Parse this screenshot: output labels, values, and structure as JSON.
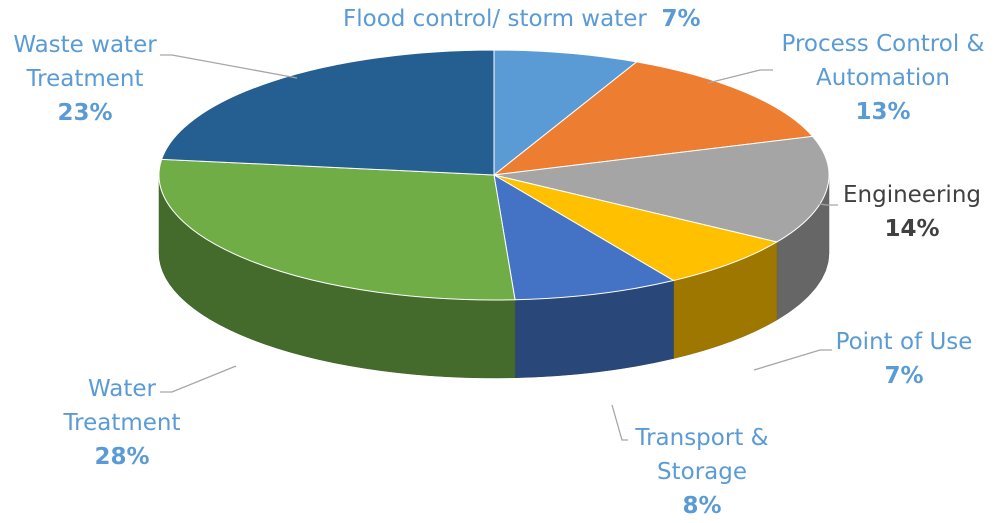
{
  "chart_data": {
    "type": "pie",
    "style": "3d",
    "slices": [
      {
        "label": "Flood control/ storm water",
        "value": 7,
        "pct": "7%",
        "color": "#5b9bd5",
        "label_color": "#5b9bd5"
      },
      {
        "label": "Process Control & Automation",
        "value": 13,
        "pct": "13%",
        "color": "#ed7d31",
        "label_color": "#5b9bd5"
      },
      {
        "label": "Engineering",
        "value": 14,
        "pct": "14%",
        "color": "#a5a5a5",
        "label_color": "#404040"
      },
      {
        "label": "Point of Use",
        "value": 7,
        "pct": "7%",
        "color": "#ffc000",
        "label_color": "#5b9bd5"
      },
      {
        "label": "Transport & Storage",
        "value": 8,
        "pct": "8%",
        "color": "#4472c4",
        "label_color": "#5b9bd5"
      },
      {
        "label": "Water Treatment",
        "value": 28,
        "pct": "28%",
        "color": "#70ad47",
        "label_color": "#5b9bd5"
      },
      {
        "label": "Waste water Treatment",
        "value": 23,
        "pct": "23%",
        "color": "#255e91",
        "label_color": "#5b9bd5"
      }
    ],
    "labels": {
      "flood": {
        "name": "Flood control/ storm water",
        "pct": "7%"
      },
      "process": {
        "line1": "Process Control &",
        "line2": "Automation",
        "pct": "13%"
      },
      "engineering": {
        "name": "Engineering",
        "pct": "14%"
      },
      "pou": {
        "name": "Point of Use",
        "pct": "7%"
      },
      "transport": {
        "line1": "Transport &",
        "line2": "Storage",
        "pct": "8%"
      },
      "water": {
        "line1": "Water",
        "line2": "Treatment",
        "pct": "28%"
      },
      "waste": {
        "line1": "Waste water",
        "line2": "Treatment",
        "pct": "23%"
      }
    }
  }
}
